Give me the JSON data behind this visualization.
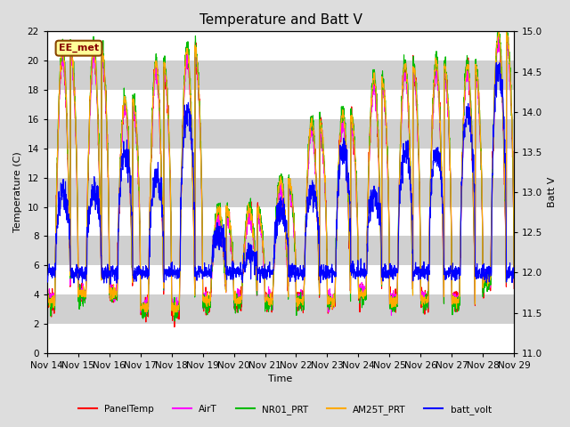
{
  "title": "Temperature and Batt V",
  "ylabel_left": "Temperature (C)",
  "ylabel_right": "Batt V",
  "xlabel": "Time",
  "annotation": "EE_met",
  "left_ylim": [
    0,
    22
  ],
  "right_ylim": [
    11.0,
    15.0
  ],
  "left_yticks": [
    0,
    2,
    4,
    6,
    8,
    10,
    12,
    14,
    16,
    18,
    20,
    22
  ],
  "right_yticks": [
    11.0,
    11.5,
    12.0,
    12.5,
    13.0,
    13.5,
    14.0,
    14.5,
    15.0
  ],
  "xtick_labels": [
    "Nov 14",
    "Nov 15",
    "Nov 16",
    "Nov 17",
    "Nov 18",
    "Nov 19",
    "Nov 20",
    "Nov 21",
    "Nov 22",
    "Nov 23",
    "Nov 24",
    "Nov 25",
    "Nov 26",
    "Nov 27",
    "Nov 28",
    "Nov 29"
  ],
  "legend_entries": [
    {
      "label": "PanelTemp",
      "color": "#ff0000"
    },
    {
      "label": "AirT",
      "color": "#ff00ff"
    },
    {
      "label": "NR01_PRT",
      "color": "#00bb00"
    },
    {
      "label": "AM25T_PRT",
      "color": "#ffaa00"
    },
    {
      "label": "batt_volt",
      "color": "#0000ff"
    }
  ],
  "bg_color": "#dddddd",
  "plot_bg_color": "#e8e8e8",
  "band_color_dark": "#d0d0d0",
  "band_color_light": "#e8e8e8",
  "grid_color": "#ffffff",
  "title_fontsize": 11,
  "axis_fontsize": 8,
  "tick_fontsize": 7.5
}
